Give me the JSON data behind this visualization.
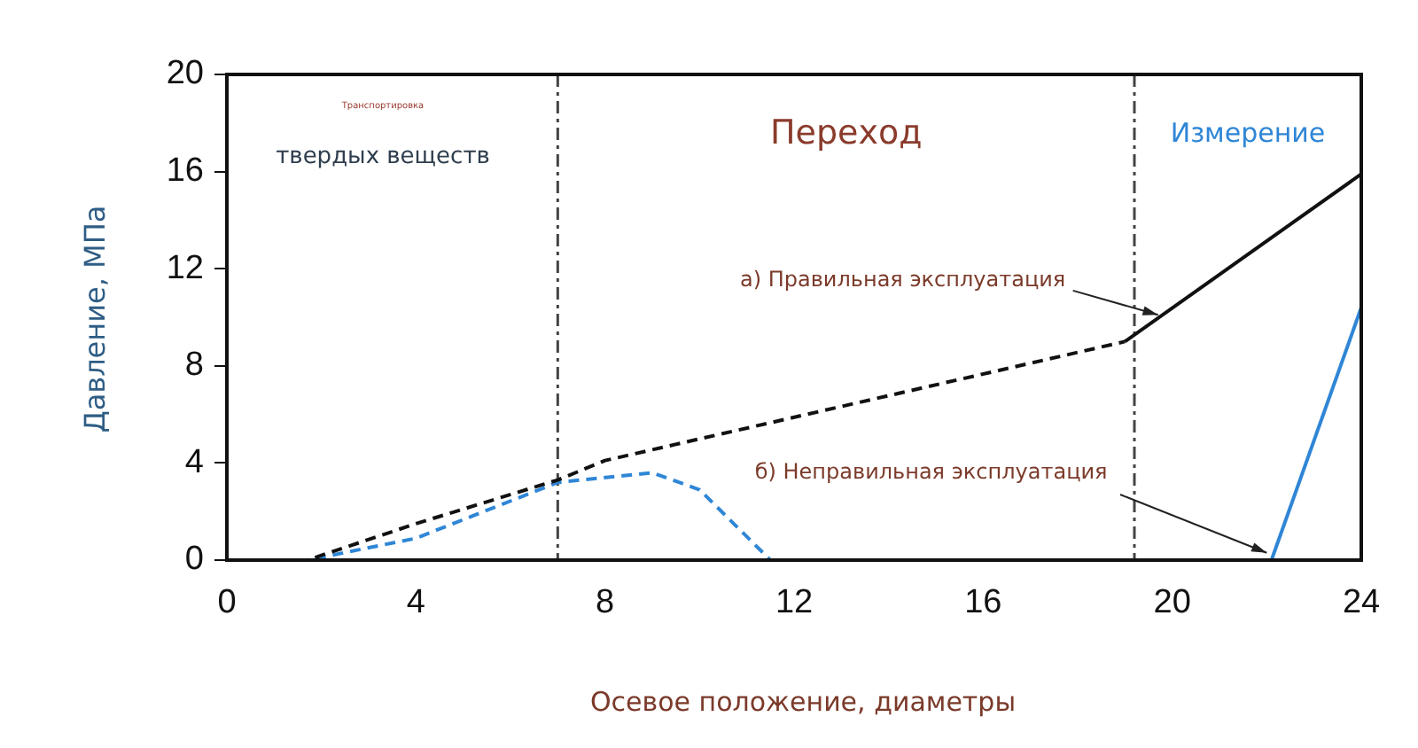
{
  "chart_data": {
    "type": "line",
    "xlabel": "Осевое положение, диаметры",
    "ylabel": "Давление, МПа",
    "xlim": [
      0,
      24
    ],
    "xticks": [
      0,
      4,
      8,
      12,
      16,
      20,
      24
    ],
    "ylim": [
      0,
      20
    ],
    "yticks": [
      0,
      4,
      8,
      12,
      16,
      20
    ],
    "grid": false,
    "legend": false,
    "marker": "none",
    "series": [
      {
        "color": "#111111",
        "line_style": "dashed",
        "x": [
          0,
          1.7,
          4,
          7,
          8,
          19
        ],
        "values": [
          0,
          0,
          1.5,
          3.3,
          4.1,
          9.0
        ]
      },
      {
        "color": "#111111",
        "line_style": "solid",
        "x": [
          19,
          24
        ],
        "values": [
          9.0,
          15.9
        ]
      },
      {
        "color": "#2f86d6",
        "line_style": "dashed",
        "x": [
          0,
          1.7,
          4,
          7,
          9,
          10,
          11.5
        ],
        "values": [
          0,
          0,
          0.9,
          3.2,
          3.6,
          2.9,
          0
        ]
      },
      {
        "color": "#2f86d6",
        "line_style": "solid",
        "x": [
          22.1,
          24
        ],
        "values": [
          0,
          10.4
        ]
      }
    ],
    "ref_lines": [
      {
        "axis": "x",
        "value": 7,
        "color": "#444444",
        "line_style": "dashed"
      },
      {
        "axis": "x",
        "value": 19.2,
        "color": "#444444",
        "line_style": "dashed"
      }
    ],
    "annotations": [
      "Транспортировка",
      "твердых веществ",
      "Переход",
      "Измерение",
      {
        "text": "а) Правильная эксплуатация",
        "x": 19.7,
        "y": 10.1
      },
      {
        "text": "б) Неправильная эксплуатация",
        "x": 22,
        "y": 0.3
      }
    ]
  }
}
